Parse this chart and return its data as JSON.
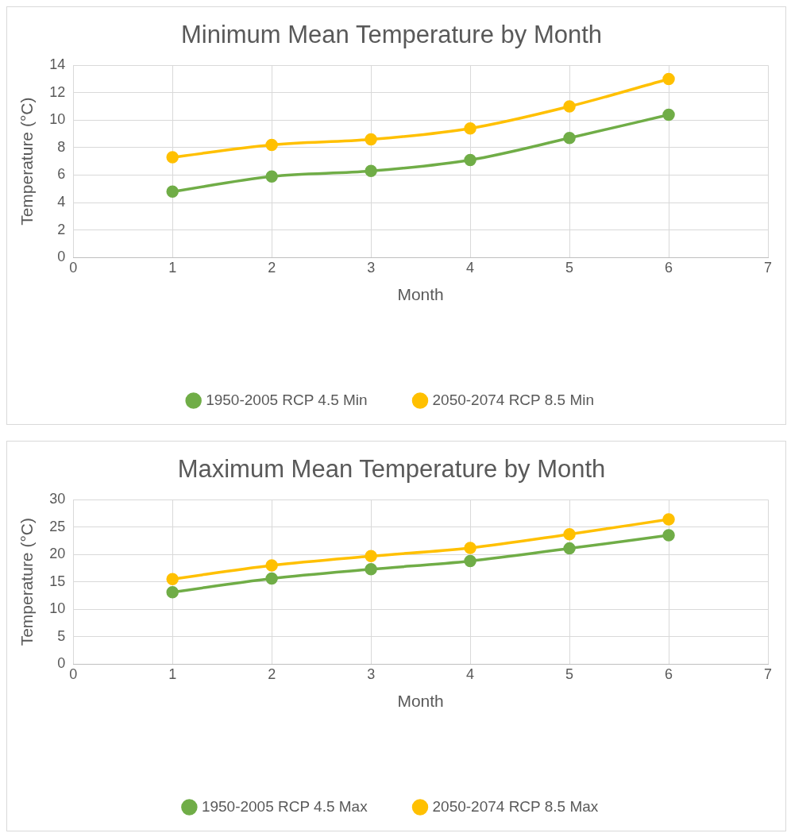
{
  "chart_data": [
    {
      "type": "line",
      "title": "Minimum Mean Temperature by Month",
      "xlabel": "Month",
      "ylabel": "Temperature (°C)",
      "x": [
        1,
        2,
        3,
        4,
        5,
        6
      ],
      "xlim": [
        0,
        7
      ],
      "xticks": [
        0,
        1,
        2,
        3,
        4,
        5,
        6,
        7
      ],
      "ylim": [
        0,
        14
      ],
      "yticks": [
        0,
        2,
        4,
        6,
        8,
        10,
        12,
        14
      ],
      "grid": true,
      "legend": "bottom",
      "marker": "circle",
      "series": [
        {
          "name": "1950-2005 RCP 4.5 Min",
          "color": "#70ad47",
          "values": [
            4.8,
            5.9,
            6.3,
            7.1,
            8.7,
            10.4
          ]
        },
        {
          "name": "2050-2074 RCP 8.5 Min",
          "color": "#ffc000",
          "values": [
            7.3,
            8.2,
            8.6,
            9.4,
            11.0,
            13.0
          ]
        }
      ]
    },
    {
      "type": "line",
      "title": "Maximum Mean Temperature by Month",
      "xlabel": "Month",
      "ylabel": "Temperature (°C)",
      "x": [
        1,
        2,
        3,
        4,
        5,
        6
      ],
      "xlim": [
        0,
        7
      ],
      "xticks": [
        0,
        1,
        2,
        3,
        4,
        5,
        6,
        7
      ],
      "ylim": [
        0,
        30
      ],
      "yticks": [
        0,
        5,
        10,
        15,
        20,
        25,
        30
      ],
      "grid": true,
      "legend": "bottom",
      "marker": "circle",
      "series": [
        {
          "name": "1950-2005 RCP 4.5 Max",
          "color": "#70ad47",
          "values": [
            13.1,
            15.6,
            17.3,
            18.8,
            21.1,
            23.5
          ]
        },
        {
          "name": "2050-2074 RCP 8.5 Max",
          "color": "#ffc000",
          "values": [
            15.5,
            18.0,
            19.7,
            21.2,
            23.7,
            26.4
          ]
        }
      ]
    }
  ]
}
